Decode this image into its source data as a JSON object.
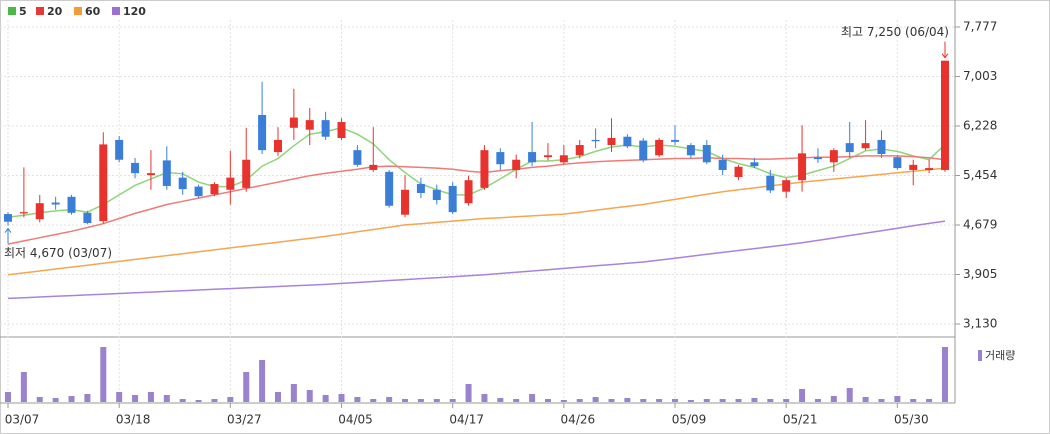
{
  "chart_data": [
    {
      "type": "candlestick",
      "legend": "top-left",
      "categories": [
        "03/07",
        null,
        null,
        null,
        null,
        null,
        null,
        "03/18",
        null,
        null,
        null,
        null,
        null,
        null,
        "03/27",
        null,
        null,
        null,
        null,
        null,
        null,
        "04/05",
        null,
        null,
        null,
        null,
        null,
        null,
        "04/17",
        null,
        null,
        null,
        null,
        null,
        null,
        "04/26",
        null,
        null,
        null,
        null,
        null,
        null,
        "05/09",
        null,
        null,
        null,
        null,
        null,
        null,
        "05/21",
        null,
        null,
        null,
        null,
        null,
        null,
        "05/30",
        null,
        null,
        null
      ],
      "up_color": "#e8322e",
      "down_color": "#3a7ed8",
      "open": [
        4850,
        4860,
        4770,
        5030,
        5120,
        4870,
        4740,
        6010,
        5650,
        5460,
        5690,
        5420,
        5280,
        5160,
        5230,
        5260,
        6400,
        5820,
        6200,
        6170,
        6320,
        6040,
        5850,
        5540,
        5510,
        4840,
        5320,
        5230,
        5290,
        5020,
        5260,
        5820,
        5540,
        5820,
        5740,
        5660,
        5770,
        6010,
        5930,
        6060,
        6000,
        5770,
        6010,
        5930,
        5930,
        5700,
        5430,
        5660,
        5450,
        5200,
        5380,
        5740,
        5660,
        5960,
        5880,
        6010,
        5740,
        5540,
        5540,
        5540
      ],
      "high": [
        4880,
        5580,
        5150,
        5120,
        5150,
        4900,
        6130,
        6070,
        5730,
        5850,
        5910,
        5510,
        5310,
        5350,
        5840,
        6200,
        6920,
        6210,
        6810,
        6510,
        6450,
        6350,
        5930,
        6210,
        5540,
        5460,
        5420,
        5310,
        5350,
        5450,
        5930,
        5880,
        5780,
        6290,
        5960,
        5930,
        6010,
        6190,
        6350,
        6100,
        6040,
        6040,
        6240,
        5960,
        6010,
        5780,
        5620,
        5730,
        5540,
        5410,
        6240,
        5880,
        5880,
        6290,
        6320,
        6160,
        5770,
        5700,
        5700,
        7250
      ],
      "low": [
        4670,
        4800,
        4720,
        4920,
        4840,
        4690,
        4700,
        5660,
        5410,
        5230,
        5230,
        5150,
        5100,
        5130,
        5000,
        5200,
        5790,
        5760,
        6010,
        5930,
        6010,
        6010,
        5590,
        5510,
        4950,
        4800,
        5100,
        5000,
        4850,
        4980,
        5230,
        5540,
        5410,
        5600,
        5690,
        5630,
        5720,
        5880,
        5820,
        5880,
        5660,
        5740,
        5930,
        5720,
        5630,
        5460,
        5380,
        5570,
        5180,
        5100,
        5200,
        5650,
        5510,
        5730,
        5850,
        5730,
        5540,
        5300,
        5490,
        5510
      ],
      "close": [
        4730,
        4880,
        5020,
        5000,
        4870,
        4710,
        5940,
        5700,
        5490,
        5490,
        5290,
        5240,
        5130,
        5320,
        5420,
        5700,
        5850,
        6010,
        6360,
        6320,
        6060,
        6290,
        5620,
        5620,
        4980,
        5230,
        5180,
        5070,
        4880,
        5380,
        5850,
        5630,
        5700,
        5660,
        5770,
        5770,
        5930,
        5990,
        6040,
        5910,
        5690,
        6010,
        5980,
        5770,
        5660,
        5540,
        5590,
        5600,
        5220,
        5380,
        5800,
        5710,
        5850,
        5820,
        5960,
        5790,
        5570,
        5620,
        5570,
        7250
      ],
      "series": [
        {
          "name": "5",
          "color": "#4cb848",
          "line_color": "#8fd47a",
          "values": [
            4800,
            4830,
            4870,
            4900,
            4920,
            4880,
            5000,
            5150,
            5300,
            5400,
            5500,
            5480,
            5350,
            5280,
            5280,
            5380,
            5600,
            5720,
            5920,
            6100,
            6140,
            6200,
            6100,
            5950,
            5700,
            5500,
            5320,
            5230,
            5150,
            5150,
            5260,
            5400,
            5550,
            5680,
            5680,
            5700,
            5750,
            5830,
            5900,
            5930,
            5900,
            5930,
            5910,
            5870,
            5830,
            5720,
            5640,
            5580,
            5480,
            5420,
            5460,
            5530,
            5600,
            5720,
            5840,
            5870,
            5830,
            5760,
            5700,
            5940
          ]
        },
        {
          "name": "20",
          "color": "#e53935",
          "line_color": "#ef7b78",
          "values": [
            4380,
            4430,
            4480,
            4530,
            4580,
            4640,
            4700,
            4780,
            4860,
            4930,
            5000,
            5050,
            5100,
            5150,
            5200,
            5250,
            5300,
            5350,
            5400,
            5450,
            5490,
            5520,
            5550,
            5590,
            5600,
            5590,
            5580,
            5570,
            5550,
            5520,
            5500,
            5530,
            5550,
            5580,
            5600,
            5630,
            5650,
            5670,
            5680,
            5690,
            5700,
            5710,
            5720,
            5720,
            5730,
            5720,
            5720,
            5710,
            5710,
            5720,
            5730,
            5740,
            5740,
            5750,
            5760,
            5760,
            5760,
            5750,
            5730,
            5700
          ]
        },
        {
          "name": "60",
          "color": "#f39a3a",
          "line_color": "#f5a650",
          "values": [
            3900,
            3930,
            3960,
            3990,
            4020,
            4050,
            4080,
            4110,
            4140,
            4170,
            4200,
            4230,
            4260,
            4290,
            4320,
            4350,
            4380,
            4410,
            4440,
            4470,
            4500,
            4536,
            4572,
            4608,
            4644,
            4680,
            4700,
            4720,
            4740,
            4760,
            4780,
            4794,
            4808,
            4822,
            4836,
            4850,
            4880,
            4910,
            4940,
            4970,
            5000,
            5040,
            5080,
            5120,
            5160,
            5200,
            5230,
            5260,
            5290,
            5320,
            5350,
            5374,
            5398,
            5422,
            5446,
            5470,
            5495,
            5520,
            5545,
            5570
          ]
        },
        {
          "name": "120",
          "color": "#9b6fd4",
          "line_color": "#a883dc",
          "values": [
            3530,
            3541,
            3552,
            3563,
            3574,
            3585,
            3596,
            3607,
            3618,
            3629,
            3640,
            3651,
            3662,
            3673,
            3684,
            3695,
            3706,
            3717,
            3728,
            3739,
            3750,
            3765,
            3780,
            3795,
            3810,
            3825,
            3840,
            3855,
            3870,
            3885,
            3900,
            3920,
            3940,
            3960,
            3980,
            4000,
            4020,
            4040,
            4060,
            4080,
            4100,
            4130,
            4160,
            4190,
            4220,
            4250,
            4280,
            4310,
            4340,
            4370,
            4400,
            4438,
            4476,
            4514,
            4552,
            4590,
            4628,
            4666,
            4704,
            4740
          ]
        }
      ],
      "ylim": [
        3130,
        7777
      ],
      "yticks": [
        {
          "value": 3130,
          "label": "3,130"
        },
        {
          "value": 3905,
          "label": "3,905"
        },
        {
          "value": 4679,
          "label": "4,679"
        },
        {
          "value": 5454,
          "label": "5,454"
        },
        {
          "value": 6228,
          "label": "6,228"
        },
        {
          "value": 7003,
          "label": "7,003"
        },
        {
          "value": 7777,
          "label": "7,777"
        }
      ],
      "grid": true,
      "annotations": {
        "high": {
          "text": "최고 7,250 (06/04)",
          "color": "#e8322e"
        },
        "low": {
          "text": "최저 4,670 (03/07)",
          "color": "#3a7ed8"
        }
      }
    },
    {
      "type": "bar",
      "name": "거래량",
      "color": "#9b82cc",
      "values": [
        10,
        30,
        5,
        4,
        6,
        8,
        55,
        10,
        7,
        10,
        7,
        3,
        2,
        3,
        5,
        30,
        42,
        10,
        18,
        12,
        7,
        8,
        5,
        3,
        5,
        3,
        3,
        3,
        3,
        18,
        8,
        4,
        3,
        8,
        3,
        2,
        3,
        5,
        3,
        4,
        3,
        3,
        3,
        2,
        3,
        3,
        3,
        4,
        3,
        3,
        13,
        3,
        6,
        14,
        5,
        3,
        6,
        3,
        3,
        55
      ],
      "ylim": [
        0,
        55
      ]
    }
  ]
}
